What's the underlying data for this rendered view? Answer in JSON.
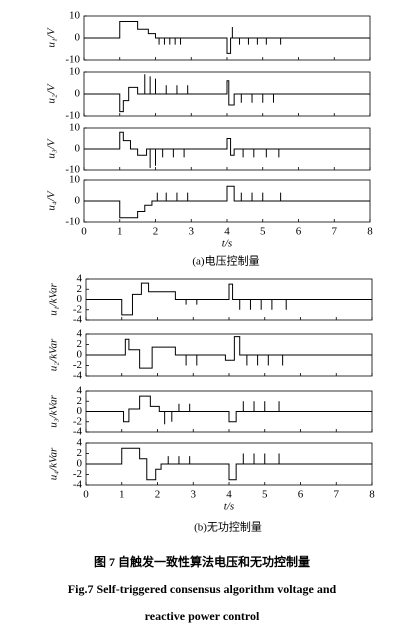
{
  "figure": {
    "caption_a": "(a)电压控制量",
    "caption_b": "(b)无功控制量",
    "title_cn": "图 7   自触发一致性算法电压和无功控制量",
    "title_en_1": "Fig.7   Self-triggered consensus algorithm voltage and",
    "title_en_2": "reactive power control"
  },
  "chart_data": [
    {
      "type": "line",
      "ylabel": "u₁/V",
      "color": "#000000",
      "xlim": [
        0,
        8
      ],
      "xticks": [
        0,
        1,
        2,
        3,
        4,
        5,
        6,
        7,
        8
      ],
      "ylim": [
        -10,
        10
      ],
      "yticks": [
        -10,
        0,
        10
      ],
      "x": [
        0,
        1,
        1,
        1.5,
        1.5,
        1.8,
        1.8,
        2,
        2,
        2.1,
        2.1,
        2.1,
        2.25,
        2.25,
        2.25,
        2.4,
        2.4,
        2.4,
        2.55,
        2.55,
        2.55,
        2.7,
        2.7,
        2.7,
        4,
        4,
        4.1,
        4.1,
        4.15,
        4.15,
        4.15,
        4.35,
        4.35,
        4.35,
        4.6,
        4.6,
        4.6,
        4.85,
        4.85,
        4.85,
        5.1,
        5.1,
        5.1,
        5.5,
        5.5,
        5.5,
        8
      ],
      "values": [
        0,
        0,
        7.5,
        7.5,
        4,
        4,
        2,
        2,
        0,
        0,
        -3,
        0,
        0,
        -3,
        0,
        0,
        -3,
        0,
        0,
        -3,
        0,
        0,
        -3,
        0,
        0,
        -7,
        -7,
        0,
        0,
        5,
        0,
        0,
        -3,
        0,
        0,
        -3,
        0,
        0,
        -3,
        0,
        0,
        -3,
        0,
        0,
        -3,
        0,
        0
      ]
    },
    {
      "type": "line",
      "ylabel": "u₂/V",
      "color": "#000000",
      "xlim": [
        0,
        8
      ],
      "xticks": [
        0,
        1,
        2,
        3,
        4,
        5,
        6,
        7,
        8
      ],
      "ylim": [
        -10,
        10
      ],
      "yticks": [
        -10,
        0,
        10
      ],
      "x": [
        0,
        1,
        1,
        1.1,
        1.1,
        1.25,
        1.25,
        1.5,
        1.5,
        1.7,
        1.7,
        1.7,
        1.85,
        1.85,
        1.85,
        2,
        2,
        2,
        2.3,
        2.3,
        2.3,
        2.6,
        2.6,
        2.6,
        2.9,
        2.9,
        2.9,
        4,
        4,
        4.05,
        4.05,
        4.2,
        4.2,
        4.4,
        4.4,
        4.4,
        4.7,
        4.7,
        4.7,
        5,
        5,
        5,
        5.3,
        5.3,
        5.3,
        8
      ],
      "values": [
        0,
        0,
        -8,
        -8,
        -3,
        -3,
        3,
        3,
        0,
        0,
        9,
        0,
        0,
        8,
        0,
        0,
        7,
        0,
        0,
        4,
        0,
        0,
        4,
        0,
        0,
        4,
        0,
        0,
        6,
        6,
        -5,
        -5,
        0,
        0,
        -4,
        0,
        0,
        -4,
        0,
        0,
        -4,
        0,
        0,
        -4,
        0,
        0
      ]
    },
    {
      "type": "line",
      "ylabel": "u₃/V",
      "color": "#000000",
      "xlim": [
        0,
        8
      ],
      "xticks": [
        0,
        1,
        2,
        3,
        4,
        5,
        6,
        7,
        8
      ],
      "ylim": [
        -10,
        10
      ],
      "yticks": [
        -10,
        0,
        10
      ],
      "x": [
        0,
        1,
        1,
        1.1,
        1.1,
        1.3,
        1.3,
        1.5,
        1.5,
        1.75,
        1.75,
        1.85,
        1.85,
        1.85,
        2,
        2,
        2,
        2.2,
        2.2,
        2.2,
        2.5,
        2.5,
        2.5,
        2.8,
        2.8,
        2.8,
        4,
        4,
        4.1,
        4.1,
        4.2,
        4.2,
        4.45,
        4.45,
        4.45,
        4.75,
        4.75,
        4.75,
        5.1,
        5.1,
        5.1,
        5.45,
        5.45,
        5.45,
        8
      ],
      "values": [
        0,
        0,
        8,
        8,
        4,
        4,
        0,
        0,
        -3,
        -3,
        0,
        0,
        -9,
        0,
        0,
        -8,
        0,
        0,
        -4,
        0,
        0,
        -4,
        0,
        0,
        -4,
        0,
        0,
        5,
        5,
        -3,
        -3,
        0,
        0,
        -4,
        0,
        0,
        -4,
        0,
        0,
        -4,
        0,
        0,
        -4,
        0,
        0
      ]
    },
    {
      "type": "line",
      "ylabel": "u₄/V",
      "xlabel": "t/s",
      "color": "#000000",
      "xlim": [
        0,
        8
      ],
      "xticks": [
        0,
        1,
        2,
        3,
        4,
        5,
        6,
        7,
        8
      ],
      "ylim": [
        -10,
        10
      ],
      "yticks": [
        -10,
        0,
        10
      ],
      "x": [
        0,
        1,
        1,
        1.5,
        1.5,
        1.7,
        1.7,
        1.9,
        1.9,
        2.05,
        2.05,
        2.05,
        2.3,
        2.3,
        2.3,
        2.6,
        2.6,
        2.6,
        2.9,
        2.9,
        2.9,
        4,
        4,
        4.2,
        4.2,
        4.4,
        4.4,
        4.4,
        4.7,
        4.7,
        4.7,
        5,
        5,
        5,
        5.5,
        5.5,
        5.5,
        8
      ],
      "values": [
        0,
        0,
        -8,
        -8,
        -5,
        -5,
        -2,
        -2,
        0,
        0,
        4,
        0,
        0,
        4,
        0,
        0,
        4,
        0,
        0,
        4,
        0,
        0,
        7,
        7,
        0,
        0,
        4,
        0,
        0,
        4,
        0,
        0,
        4,
        0,
        0,
        4,
        0,
        0
      ]
    },
    {
      "type": "line",
      "ylabel": "u₁/kVar",
      "color": "#000000",
      "xlim": [
        0,
        8
      ],
      "xticks": [
        0,
        1,
        2,
        3,
        4,
        5,
        6,
        7,
        8
      ],
      "ylim": [
        -4,
        4
      ],
      "yticks": [
        -4,
        -2,
        0,
        2,
        4
      ],
      "x": [
        0,
        1,
        1,
        1.3,
        1.3,
        1.55,
        1.55,
        1.75,
        1.75,
        2.5,
        2.5,
        2.8,
        2.8,
        2.8,
        3.1,
        3.1,
        3.1,
        4,
        4,
        4.1,
        4.1,
        4.3,
        4.3,
        4.3,
        4.6,
        4.6,
        4.6,
        4.9,
        4.9,
        4.9,
        5.2,
        5.2,
        5.2,
        5.6,
        5.6,
        5.6,
        8
      ],
      "values": [
        0,
        0,
        -3,
        -3,
        1,
        1,
        3.2,
        3.2,
        1.5,
        1.5,
        0,
        0,
        -1,
        0,
        0,
        -1,
        0,
        0,
        3,
        3,
        0,
        0,
        -2,
        0,
        0,
        -2,
        0,
        0,
        -2,
        0,
        0,
        -2,
        0,
        0,
        -2,
        0,
        0
      ]
    },
    {
      "type": "line",
      "ylabel": "u₂/kVar",
      "color": "#000000",
      "xlim": [
        0,
        8
      ],
      "xticks": [
        0,
        1,
        2,
        3,
        4,
        5,
        6,
        7,
        8
      ],
      "ylim": [
        -4,
        4
      ],
      "yticks": [
        -4,
        -2,
        0,
        2,
        4
      ],
      "x": [
        0,
        1.1,
        1.1,
        1.2,
        1.2,
        1.5,
        1.5,
        1.85,
        1.85,
        2.5,
        2.5,
        2.8,
        2.8,
        2.8,
        3.1,
        3.1,
        3.1,
        3.9,
        3.9,
        4.15,
        4.15,
        4.3,
        4.3,
        4.5,
        4.5,
        4.5,
        4.8,
        4.8,
        4.8,
        5.1,
        5.1,
        5.1,
        5.5,
        5.5,
        5.5,
        8
      ],
      "values": [
        0,
        0,
        3,
        3,
        1,
        1,
        -2.5,
        -2.5,
        1.5,
        1.5,
        0,
        0,
        -2,
        0,
        0,
        -2,
        0,
        0,
        -1,
        -1,
        3.5,
        3.5,
        0,
        0,
        -2,
        0,
        0,
        -2,
        0,
        0,
        -2,
        0,
        0,
        -2,
        0,
        0
      ]
    },
    {
      "type": "line",
      "ylabel": "u₃/kVar",
      "color": "#000000",
      "xlim": [
        0,
        8
      ],
      "xticks": [
        0,
        1,
        2,
        3,
        4,
        5,
        6,
        7,
        8
      ],
      "ylim": [
        -4,
        4
      ],
      "yticks": [
        -4,
        -2,
        0,
        2,
        4
      ],
      "x": [
        0,
        1.05,
        1.05,
        1.2,
        1.2,
        1.5,
        1.5,
        1.8,
        1.8,
        2.05,
        2.05,
        2.2,
        2.2,
        2.2,
        2.4,
        2.4,
        2.4,
        2.6,
        2.6,
        2.6,
        2.9,
        2.9,
        2.9,
        4,
        4,
        4.2,
        4.2,
        4.4,
        4.4,
        4.4,
        4.7,
        4.7,
        4.7,
        5,
        5,
        5,
        5.4,
        5.4,
        5.4,
        8
      ],
      "values": [
        0,
        0,
        -2,
        -2,
        0.5,
        0.5,
        3,
        3,
        1,
        1,
        0,
        0,
        -2.5,
        0,
        0,
        -2,
        0,
        0,
        1.5,
        0,
        0,
        1.5,
        0,
        0,
        -2,
        -2,
        0,
        0,
        2,
        0,
        0,
        2,
        0,
        0,
        2,
        0,
        0,
        2,
        0,
        0
      ]
    },
    {
      "type": "line",
      "ylabel": "u₄/kVar",
      "xlabel": "t/s",
      "color": "#000000",
      "xlim": [
        0,
        8
      ],
      "xticks": [
        0,
        1,
        2,
        3,
        4,
        5,
        6,
        7,
        8
      ],
      "ylim": [
        -4,
        4
      ],
      "yticks": [
        -4,
        -2,
        0,
        2,
        4
      ],
      "x": [
        0,
        1,
        1,
        1.5,
        1.5,
        1.7,
        1.7,
        1.95,
        1.95,
        2.1,
        2.1,
        2.3,
        2.3,
        2.3,
        2.6,
        2.6,
        2.6,
        2.9,
        2.9,
        2.9,
        4,
        4,
        4.2,
        4.2,
        4.4,
        4.4,
        4.4,
        4.7,
        4.7,
        4.7,
        5,
        5,
        5,
        5.4,
        5.4,
        5.4,
        8
      ],
      "values": [
        0,
        0,
        3,
        3,
        1,
        1,
        -3,
        -3,
        -1,
        -1,
        0,
        0,
        1.5,
        0,
        0,
        1.5,
        0,
        0,
        1.5,
        0,
        0,
        -3,
        -3,
        0,
        0,
        2,
        0,
        0,
        2,
        0,
        0,
        2,
        0,
        0,
        2,
        0,
        0
      ]
    }
  ]
}
